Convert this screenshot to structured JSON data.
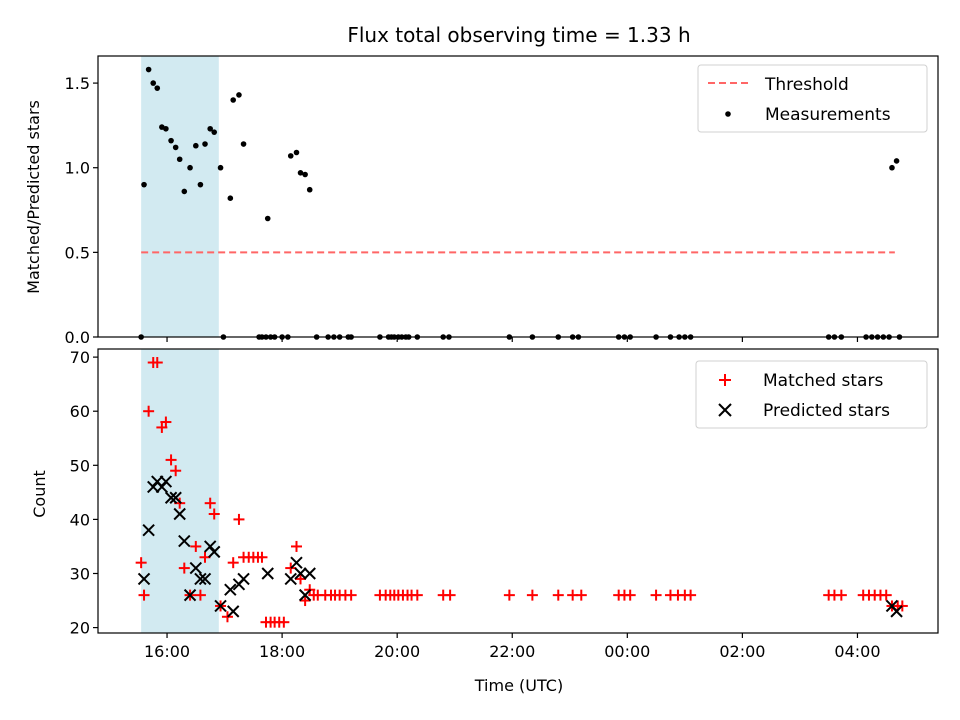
{
  "chart_data": [
    {
      "type": "scatter",
      "title": "Flux total observing time = 1.33 h",
      "xlabel": "",
      "ylabel": "Matched/Predicted stars",
      "xlim": [
        14.8,
        29.4
      ],
      "ylim": [
        0,
        1.66
      ],
      "yticks": [
        0.0,
        0.5,
        1.0,
        1.5
      ],
      "ytick_labels": [
        "0.0",
        "0.5",
        "1.0",
        "1.5"
      ],
      "shaded_span": {
        "x": [
          15.55,
          16.9
        ],
        "color": "#add8e6"
      },
      "legend": {
        "position": "top-right"
      },
      "threshold": {
        "name": "Threshold",
        "value": 0.5,
        "x": [
          15.55,
          28.65
        ],
        "color": "#ff6666",
        "style": "dashed"
      },
      "series": [
        {
          "name": "Measurements",
          "color": "#000000",
          "points": [
            [
              15.6,
              0.9
            ],
            [
              15.68,
              1.58
            ],
            [
              15.76,
              1.5
            ],
            [
              15.83,
              1.47
            ],
            [
              15.91,
              1.24
            ],
            [
              15.98,
              1.23
            ],
            [
              16.07,
              1.16
            ],
            [
              16.15,
              1.12
            ],
            [
              16.22,
              1.05
            ],
            [
              16.3,
              0.86
            ],
            [
              16.4,
              1.0
            ],
            [
              16.5,
              1.13
            ],
            [
              16.58,
              0.9
            ],
            [
              16.66,
              1.14
            ],
            [
              16.75,
              1.23
            ],
            [
              16.82,
              1.21
            ],
            [
              16.93,
              1.0
            ],
            [
              17.1,
              0.82
            ],
            [
              17.15,
              1.4
            ],
            [
              17.25,
              1.43
            ],
            [
              17.33,
              1.14
            ],
            [
              17.75,
              0.7
            ],
            [
              18.15,
              1.07
            ],
            [
              18.25,
              1.09
            ],
            [
              18.32,
              0.97
            ],
            [
              18.4,
              0.96
            ],
            [
              18.48,
              0.87
            ],
            [
              28.6,
              1.0
            ],
            [
              28.68,
              1.04
            ],
            [
              15.55,
              0
            ],
            [
              16.98,
              0
            ],
            [
              17.6,
              0
            ],
            [
              17.65,
              0
            ],
            [
              17.72,
              0
            ],
            [
              17.8,
              0
            ],
            [
              17.87,
              0
            ],
            [
              18.0,
              0
            ],
            [
              18.1,
              0
            ],
            [
              18.6,
              0
            ],
            [
              18.8,
              0
            ],
            [
              18.9,
              0
            ],
            [
              19.0,
              0
            ],
            [
              19.15,
              0
            ],
            [
              19.2,
              0
            ],
            [
              19.7,
              0
            ],
            [
              19.85,
              0
            ],
            [
              19.9,
              0
            ],
            [
              19.95,
              0
            ],
            [
              20.02,
              0
            ],
            [
              20.08,
              0
            ],
            [
              20.15,
              0
            ],
            [
              20.2,
              0
            ],
            [
              20.35,
              0
            ],
            [
              20.8,
              0
            ],
            [
              20.9,
              0
            ],
            [
              21.95,
              0
            ],
            [
              22.35,
              0
            ],
            [
              22.8,
              0
            ],
            [
              23.05,
              0
            ],
            [
              23.15,
              0
            ],
            [
              23.85,
              0
            ],
            [
              23.95,
              0
            ],
            [
              24.05,
              0
            ],
            [
              24.5,
              0
            ],
            [
              24.75,
              0
            ],
            [
              24.9,
              0
            ],
            [
              25.0,
              0
            ],
            [
              25.1,
              0
            ],
            [
              27.5,
              0
            ],
            [
              27.6,
              0
            ],
            [
              27.72,
              0
            ],
            [
              28.15,
              0
            ],
            [
              28.25,
              0
            ],
            [
              28.35,
              0
            ],
            [
              28.45,
              0
            ],
            [
              28.55,
              0
            ],
            [
              28.73,
              0
            ]
          ]
        }
      ]
    },
    {
      "type": "scatter",
      "title": "",
      "xlabel": "Time (UTC)",
      "ylabel": "Count",
      "xlim": [
        14.8,
        29.4
      ],
      "ylim": [
        19,
        71.5
      ],
      "yticks": [
        20,
        30,
        40,
        50,
        60,
        70
      ],
      "ytick_labels": [
        "20",
        "30",
        "40",
        "50",
        "60",
        "70"
      ],
      "xticks": [
        16,
        18,
        20,
        22,
        24,
        26,
        28
      ],
      "xtick_labels": [
        "16:00",
        "18:00",
        "20:00",
        "22:00",
        "00:00",
        "02:00",
        "04:00"
      ],
      "shaded_span": {
        "x": [
          15.55,
          16.9
        ],
        "color": "#add8e6"
      },
      "legend": {
        "position": "top-right"
      },
      "series": [
        {
          "name": "Matched stars",
          "color": "#ff0000",
          "points": [
            [
              15.55,
              32
            ],
            [
              15.6,
              26
            ],
            [
              15.68,
              60
            ],
            [
              15.76,
              69
            ],
            [
              15.83,
              69
            ],
            [
              15.91,
              57
            ],
            [
              15.98,
              58
            ],
            [
              16.07,
              51
            ],
            [
              16.15,
              49
            ],
            [
              16.22,
              43
            ],
            [
              16.3,
              31
            ],
            [
              16.4,
              26
            ],
            [
              16.5,
              35
            ],
            [
              16.58,
              26
            ],
            [
              16.66,
              33
            ],
            [
              16.75,
              43
            ],
            [
              16.82,
              41
            ],
            [
              16.93,
              24
            ],
            [
              17.05,
              22
            ],
            [
              17.15,
              32
            ],
            [
              17.25,
              40
            ],
            [
              17.33,
              33
            ],
            [
              17.42,
              33
            ],
            [
              17.5,
              33
            ],
            [
              17.58,
              33
            ],
            [
              17.65,
              33
            ],
            [
              17.72,
              21
            ],
            [
              17.8,
              21
            ],
            [
              17.87,
              21
            ],
            [
              17.95,
              21
            ],
            [
              18.03,
              21
            ],
            [
              18.15,
              31
            ],
            [
              18.25,
              35
            ],
            [
              18.32,
              29
            ],
            [
              18.4,
              25
            ],
            [
              18.48,
              27
            ],
            [
              18.55,
              26
            ],
            [
              18.62,
              26
            ],
            [
              18.75,
              26
            ],
            [
              18.85,
              26
            ],
            [
              18.92,
              26
            ],
            [
              19.0,
              26
            ],
            [
              19.1,
              26
            ],
            [
              19.2,
              26
            ],
            [
              19.7,
              26
            ],
            [
              19.8,
              26
            ],
            [
              19.88,
              26
            ],
            [
              19.95,
              26
            ],
            [
              20.02,
              26
            ],
            [
              20.1,
              26
            ],
            [
              20.18,
              26
            ],
            [
              20.25,
              26
            ],
            [
              20.35,
              26
            ],
            [
              20.8,
              26
            ],
            [
              20.92,
              26
            ],
            [
              21.95,
              26
            ],
            [
              22.35,
              26
            ],
            [
              22.8,
              26
            ],
            [
              23.05,
              26
            ],
            [
              23.2,
              26
            ],
            [
              23.85,
              26
            ],
            [
              23.95,
              26
            ],
            [
              24.05,
              26
            ],
            [
              24.5,
              26
            ],
            [
              24.75,
              26
            ],
            [
              24.88,
              26
            ],
            [
              25.0,
              26
            ],
            [
              25.1,
              26
            ],
            [
              27.5,
              26
            ],
            [
              27.6,
              26
            ],
            [
              27.72,
              26
            ],
            [
              28.1,
              26
            ],
            [
              28.2,
              26
            ],
            [
              28.3,
              26
            ],
            [
              28.4,
              26
            ],
            [
              28.5,
              26
            ],
            [
              28.6,
              24
            ],
            [
              28.7,
              24
            ],
            [
              28.78,
              24
            ]
          ]
        },
        {
          "name": "Predicted stars",
          "color": "#000000",
          "points": [
            [
              15.6,
              29
            ],
            [
              15.68,
              38
            ],
            [
              15.76,
              46
            ],
            [
              15.83,
              47
            ],
            [
              15.91,
              46
            ],
            [
              15.98,
              47
            ],
            [
              16.07,
              44
            ],
            [
              16.15,
              44
            ],
            [
              16.22,
              41
            ],
            [
              16.3,
              36
            ],
            [
              16.4,
              26
            ],
            [
              16.5,
              31
            ],
            [
              16.58,
              29
            ],
            [
              16.66,
              29
            ],
            [
              16.75,
              35
            ],
            [
              16.82,
              34
            ],
            [
              16.93,
              24
            ],
            [
              17.1,
              27
            ],
            [
              17.15,
              23
            ],
            [
              17.25,
              28
            ],
            [
              17.33,
              29
            ],
            [
              17.75,
              30
            ],
            [
              18.15,
              29
            ],
            [
              18.25,
              32
            ],
            [
              18.32,
              30
            ],
            [
              18.4,
              26
            ],
            [
              18.48,
              30
            ],
            [
              28.6,
              24
            ],
            [
              28.68,
              23
            ]
          ]
        }
      ]
    }
  ]
}
